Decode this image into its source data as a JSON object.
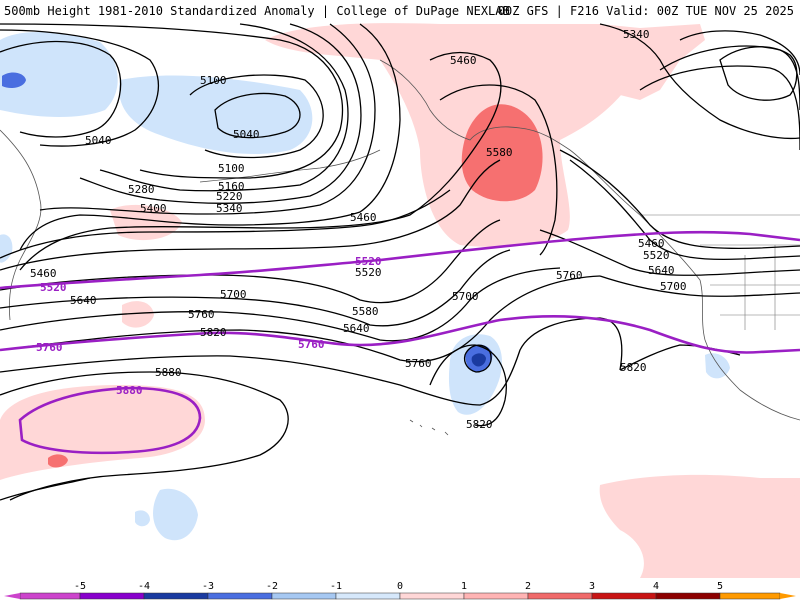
{
  "header": {
    "left": "500mb Height 1981-2010 Standardized Anomaly | College of DuPage NEXLAB",
    "right": "00Z GFS | F216 Valid: 00Z TUE NOV 25 2025"
  },
  "contour_labels": {
    "c5340": "5340",
    "c5460_top": "5460",
    "c5100_a": "5100",
    "c5040_a": "5040",
    "c5040_b": "5040",
    "c5100_b": "5100",
    "c5160": "5160",
    "c5220": "5220",
    "c5280": "5280",
    "c5340_b": "5340",
    "c5400": "5400",
    "c5460_mid": "5460",
    "c5580_top": "5580",
    "c5460_r": "5460",
    "c5520_r": "5520",
    "c5640_r": "5640",
    "c5700_r": "5700",
    "c5460_l": "5460",
    "c5520_l": "5520",
    "c5520_mid": "5520",
    "c5520_mid2": "5520",
    "c5640_l": "5640",
    "c5700_mid": "5700",
    "c5700_c": "5700",
    "c5760_l": "5760",
    "c5760_mid": "5760",
    "c5760_r": "5760",
    "c5760_far": "5760",
    "c5820_l": "5820",
    "c5580_c": "5580",
    "c5640_c": "5640",
    "c5760_c": "5760",
    "c5820_r": "5820",
    "c5820_c": "5820",
    "c5880": "5880",
    "c5880_purple": "5880"
  },
  "colorbar": {
    "ticks": [
      "-5",
      "-4",
      "-3",
      "-2",
      "-1",
      "0",
      "1",
      "2",
      "3",
      "4",
      "5"
    ],
    "colors": {
      "n5": "#cc44cc",
      "n4": "#8800cc",
      "n3": "#1a3aa0",
      "n2": "#4a6ee0",
      "n1": "#a6c8f2",
      "n0": "#d6e8fb",
      "z": "#ffffff",
      "p0": "#ffd7d7",
      "p1": "#ffb4b4",
      "p2": "#f06a6a",
      "p3": "#c81414",
      "p4": "#8c0000",
      "p5": "#ff9a00"
    }
  },
  "map": {
    "purple_lines": [
      "5520",
      "5760",
      "5880"
    ],
    "anomaly_colors": {
      "weak_pos": "#ffd7d7",
      "mod_pos": "#f67070",
      "weak_neg": "#cfe4fb",
      "mod_neg": "#4a6ee0",
      "strong_neg": "#1a3aa0"
    },
    "contour_color": "#000000",
    "purple_color": "#9a1fc4",
    "coast_color": "#555555"
  }
}
